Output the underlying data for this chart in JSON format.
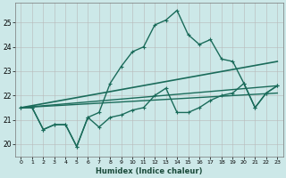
{
  "xlabel": "Humidex (Indice chaleur)",
  "bg_color": "#cce8e8",
  "grid_color": "#b8b8b8",
  "line_color": "#1a6b5a",
  "xlim": [
    -0.5,
    23.5
  ],
  "ylim": [
    19.5,
    25.8
  ],
  "yticks": [
    20,
    21,
    22,
    23,
    24,
    25
  ],
  "xticks": [
    0,
    1,
    2,
    3,
    4,
    5,
    6,
    7,
    8,
    9,
    10,
    11,
    12,
    13,
    14,
    15,
    16,
    17,
    18,
    19,
    20,
    21,
    22,
    23
  ],
  "series": [
    {
      "x": [
        0,
        1,
        2,
        3,
        4,
        5,
        6,
        7,
        8,
        9,
        10,
        11,
        12,
        13,
        14,
        15,
        16,
        17,
        18,
        19,
        20,
        21,
        22,
        23
      ],
      "y": [
        21.5,
        21.5,
        20.6,
        20.8,
        20.8,
        19.9,
        21.1,
        20.7,
        21.1,
        21.2,
        21.4,
        21.5,
        22.0,
        22.3,
        21.3,
        21.3,
        21.5,
        21.8,
        22.0,
        22.1,
        22.5,
        21.5,
        22.1,
        22.4
      ],
      "marker": true,
      "linestyle": "solid",
      "linewidth": 1.0
    },
    {
      "x": [
        0,
        1,
        2,
        3,
        4,
        5,
        6,
        7,
        8,
        9,
        10,
        11,
        12,
        13,
        14,
        15,
        16,
        17,
        18,
        19,
        20,
        21,
        22,
        23
      ],
      "y": [
        21.5,
        21.5,
        20.6,
        20.8,
        20.8,
        19.9,
        21.1,
        21.3,
        22.5,
        23.2,
        23.8,
        24.0,
        24.9,
        25.1,
        25.5,
        24.5,
        24.1,
        24.3,
        23.5,
        23.4,
        22.5,
        21.5,
        22.1,
        22.4
      ],
      "marker": true,
      "linestyle": "solid",
      "linewidth": 1.0
    },
    {
      "x": [
        0,
        23
      ],
      "y": [
        21.5,
        23.4
      ],
      "marker": false,
      "linestyle": "solid",
      "linewidth": 1.2
    },
    {
      "x": [
        0,
        23
      ],
      "y": [
        21.5,
        22.4
      ],
      "marker": false,
      "linestyle": "solid",
      "linewidth": 1.0
    },
    {
      "x": [
        0,
        23
      ],
      "y": [
        21.5,
        22.1
      ],
      "marker": false,
      "linestyle": "solid",
      "linewidth": 1.0
    }
  ]
}
